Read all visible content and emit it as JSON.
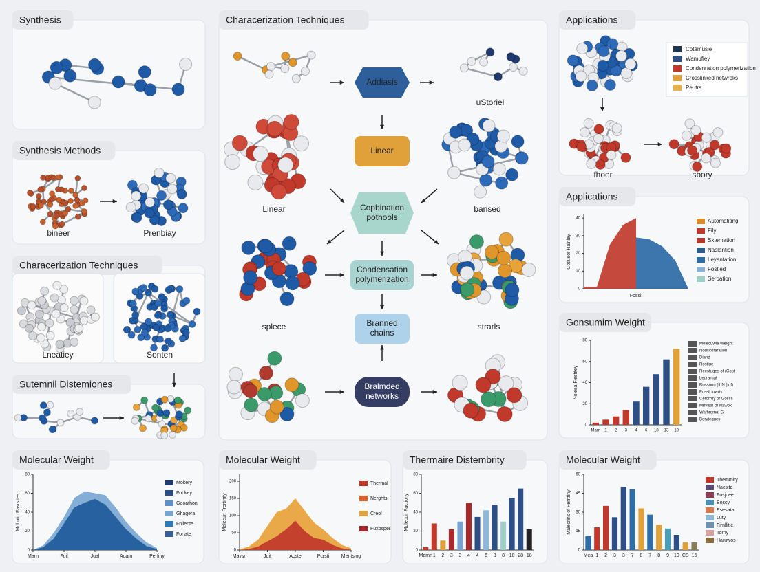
{
  "panels": [
    {
      "title": "Synthesis"
    },
    {
      "title": "Synthesis Methods",
      "labels": [
        "bineer",
        "Prenbiay"
      ]
    },
    {
      "title": "Characerization Techniques",
      "labels": [
        "Lneatiey",
        "Sonten"
      ]
    },
    {
      "title": "Sutemnil Distemiones"
    },
    {
      "title": "Characerization Techniques",
      "labels": [
        "uStoriel",
        "Linear",
        "bansed",
        "splece",
        "strarls"
      ],
      "nodes": [
        "Addiasis",
        "Linear",
        "Copbination pothools",
        "Condensation polymerization",
        "Branned chains",
        "Bralmded networks"
      ]
    },
    {
      "title": "Applications",
      "labels": [
        "fhoer",
        "sbory"
      ],
      "legend": [
        {
          "name": "Cotamusie",
          "color": "#1f3550"
        },
        {
          "name": "Wamufiey",
          "color": "#2d4f86"
        },
        {
          "name": "Condenration polymerization",
          "color": "#c0392b"
        },
        {
          "name": "Crosslinked netwroks",
          "color": "#e0a03a"
        },
        {
          "name": "Peutrs",
          "color": "#eab04a"
        }
      ]
    }
  ],
  "charts": [
    {
      "type": "area",
      "title": "Applications",
      "ylabel": "Cotiusor Rainley",
      "xlabel": "Fossil",
      "x": [
        0,
        1,
        2,
        3,
        4,
        5,
        6,
        7,
        8
      ],
      "xlim": [
        0,
        8
      ],
      "ylim": [
        0,
        42
      ],
      "yticks": [
        0,
        10,
        20,
        30,
        40
      ],
      "series": [
        {
          "color": "#c0392b",
          "values": [
            1,
            1,
            25,
            36,
            40,
            null,
            null,
            null,
            null
          ]
        },
        {
          "color": "#2d6aa6",
          "values": [
            null,
            null,
            null,
            null,
            29,
            28,
            24,
            16,
            0
          ]
        }
      ],
      "legend": [
        {
          "name": "Automatiting",
          "color": "#d98a2b"
        },
        {
          "name": "Fily",
          "color": "#c0392b"
        },
        {
          "name": "Sxtemation",
          "color": "#b03a2e"
        },
        {
          "name": "Naslantion",
          "color": "#2d5d8c"
        },
        {
          "name": "Leyantation",
          "color": "#2f6da6"
        },
        {
          "name": "Fostied",
          "color": "#8eb0cf"
        },
        {
          "name": "Serpation",
          "color": "#9fcfc6"
        }
      ]
    },
    {
      "type": "bar",
      "title": "Gonsumim Weight",
      "ylabel": "Nolesa Flestitey",
      "categories": [
        "Marn",
        "1",
        "2",
        "3",
        "4",
        "6",
        "18",
        "13",
        "10"
      ],
      "values": [
        2,
        5,
        8,
        14,
        22,
        36,
        48,
        62,
        72
      ],
      "colors": [
        "#c0392b",
        "#c0392b",
        "#c0392b",
        "#c0392b",
        "#2d4f86",
        "#2d4f86",
        "#2d4f86",
        "#2d4f86",
        "#e0a03a"
      ],
      "ylim": [
        0,
        80
      ],
      "yticks": [
        0,
        20,
        40,
        60,
        80
      ],
      "legend": [
        {
          "name": "Molecuwle Weight",
          "color": "#555"
        },
        {
          "name": "Nodscoferation",
          "color": "#555"
        },
        {
          "name": "Dianz",
          "color": "#555"
        },
        {
          "name": "Rostiue",
          "color": "#555"
        },
        {
          "name": "Reesfuges of (Cost",
          "color": "#555"
        },
        {
          "name": "Leuraruat",
          "color": "#555"
        },
        {
          "name": "Rossuou (thN (tuf)",
          "color": "#555"
        },
        {
          "name": "Fossil towrts",
          "color": "#555"
        },
        {
          "name": "Cerorruy of Gosss",
          "color": "#555"
        },
        {
          "name": "Mhvisal of Nawok",
          "color": "#555"
        },
        {
          "name": "Wafhromal G",
          "color": "#555"
        },
        {
          "name": "Berytegues",
          "color": "#555"
        }
      ]
    },
    {
      "type": "area",
      "title": "Molecular Weight",
      "ylabel": "Mobotic Fasrsites",
      "x": [
        0,
        1,
        2,
        3,
        4,
        5,
        6,
        7,
        8,
        9,
        10,
        11,
        12
      ],
      "xlim": [
        0,
        12
      ],
      "ylim": [
        0,
        80
      ],
      "yticks": [
        0,
        20,
        40,
        60,
        80
      ],
      "xticks": [
        {
          "value": 0,
          "label": "Marn"
        },
        {
          "value": 3,
          "label": "Fuil"
        },
        {
          "value": 6,
          "label": "Jual"
        },
        {
          "value": 9,
          "label": "Aoam"
        },
        {
          "value": 12,
          "label": "Pertiny"
        }
      ],
      "series": [
        {
          "color": "#7ba7d4",
          "values": [
            0,
            5,
            18,
            35,
            55,
            62,
            60,
            58,
            45,
            30,
            18,
            8,
            2
          ]
        },
        {
          "color": "#1f5a9a",
          "values": [
            0,
            3,
            12,
            28,
            45,
            50,
            54,
            48,
            35,
            22,
            12,
            4,
            1
          ]
        }
      ],
      "legend": [
        {
          "name": "Mokery",
          "color": "#1f3a6e"
        },
        {
          "name": "Fobkey",
          "color": "#2a4d86"
        },
        {
          "name": "Geoathon",
          "color": "#5f8fc4"
        },
        {
          "name": "Ghagera",
          "color": "#7aa3cf"
        },
        {
          "name": "Fnllente",
          "color": "#2f7ab8"
        },
        {
          "name": "Forlate",
          "color": "#3a5d95"
        }
      ]
    },
    {
      "type": "area",
      "title": "Molecular Weight",
      "ylabel": "Malecuit Frortinity",
      "x": [
        0,
        1,
        2,
        3,
        4,
        5,
        6,
        7,
        8,
        9,
        10,
        11,
        12
      ],
      "xlim": [
        0,
        12
      ],
      "ylim": [
        0,
        220
      ],
      "yticks": [
        0,
        50,
        100,
        150,
        200
      ],
      "xticks": [
        {
          "value": 0,
          "label": "Mavsn"
        },
        {
          "value": 3,
          "label": "Juit"
        },
        {
          "value": 6,
          "label": "Acste"
        },
        {
          "value": 9,
          "label": "Pcrsti"
        },
        {
          "value": 12,
          "label": "Mentsing"
        }
      ],
      "series": [
        {
          "color": "#e8a23a",
          "values": [
            2,
            10,
            30,
            70,
            110,
            120,
            150,
            115,
            80,
            60,
            35,
            15,
            5
          ]
        },
        {
          "color": "#c0392b",
          "values": [
            0,
            3,
            10,
            25,
            40,
            60,
            85,
            55,
            35,
            30,
            15,
            5,
            1
          ]
        }
      ],
      "legend": [
        {
          "name": "Thermal",
          "color": "#c0392b"
        },
        {
          "name": "Nerghts",
          "color": "#d9622b"
        },
        {
          "name": "Creol",
          "color": "#e0a03a"
        },
        {
          "name": "Fuxpsper",
          "color": "#a8282b"
        }
      ]
    },
    {
      "type": "bar",
      "title": "Thermaire Distembrity",
      "ylabel": "Molecuir Factiony",
      "categories": [
        "Mamn",
        "1",
        "2",
        "3",
        "3",
        "4",
        "4",
        "6",
        "8",
        "8",
        "10",
        "28",
        "18"
      ],
      "values": [
        3,
        28,
        10,
        22,
        30,
        50,
        35,
        42,
        48,
        30,
        55,
        65,
        22
      ],
      "colors": [
        "#c0392b",
        "#c0392b",
        "#e0a03a",
        "#a8282b",
        "#7aa3cf",
        "#a8282b",
        "#2d4f86",
        "#8eb8d8",
        "#2d4f86",
        "#9fcfc6",
        "#2d4f86",
        "#2d4f86",
        "#222222"
      ],
      "ylim": [
        0,
        80
      ],
      "yticks": [
        0,
        20,
        40,
        60,
        80
      ]
    },
    {
      "type": "bar",
      "title": "Molecular Weight",
      "ylabel": "Malecrins of Ferrttiny",
      "categories": [
        "Mea",
        "1",
        "2",
        "3",
        "3",
        "7",
        "8",
        "7",
        "8",
        "9",
        "10",
        "CS",
        "15"
      ],
      "values": [
        11,
        18,
        35,
        26,
        50,
        48,
        33,
        28,
        20,
        17,
        12,
        6,
        6
      ],
      "colors": [
        "#2f6da6",
        "#c0392b",
        "#c0392b",
        "#2d4f86",
        "#2d4f86",
        "#2f6da6",
        "#e0a03a",
        "#2f6da6",
        "#e0a03a",
        "#4a9fb8",
        "#2d4f86",
        "#e0a03a",
        "#8a7d5a"
      ],
      "ylim": [
        0,
        60
      ],
      "yticks": [
        0,
        15,
        30,
        45,
        60
      ],
      "legend": [
        {
          "name": "Themmity",
          "color": "#c0392b"
        },
        {
          "name": "Nacsita",
          "color": "#5a4a78"
        },
        {
          "name": "Fusjuee",
          "color": "#8a3b58"
        },
        {
          "name": "Boscy",
          "color": "#4a8fb8"
        },
        {
          "name": "Esesata",
          "color": "#d97a4a"
        },
        {
          "name": "Luty",
          "color": "#8eb8d8"
        },
        {
          "name": "Firnllitie",
          "color": "#6f8fb0"
        },
        {
          "name": "Torny",
          "color": "#d9a0a0"
        },
        {
          "name": "Haruwos",
          "color": "#8a6d3a"
        }
      ]
    }
  ]
}
